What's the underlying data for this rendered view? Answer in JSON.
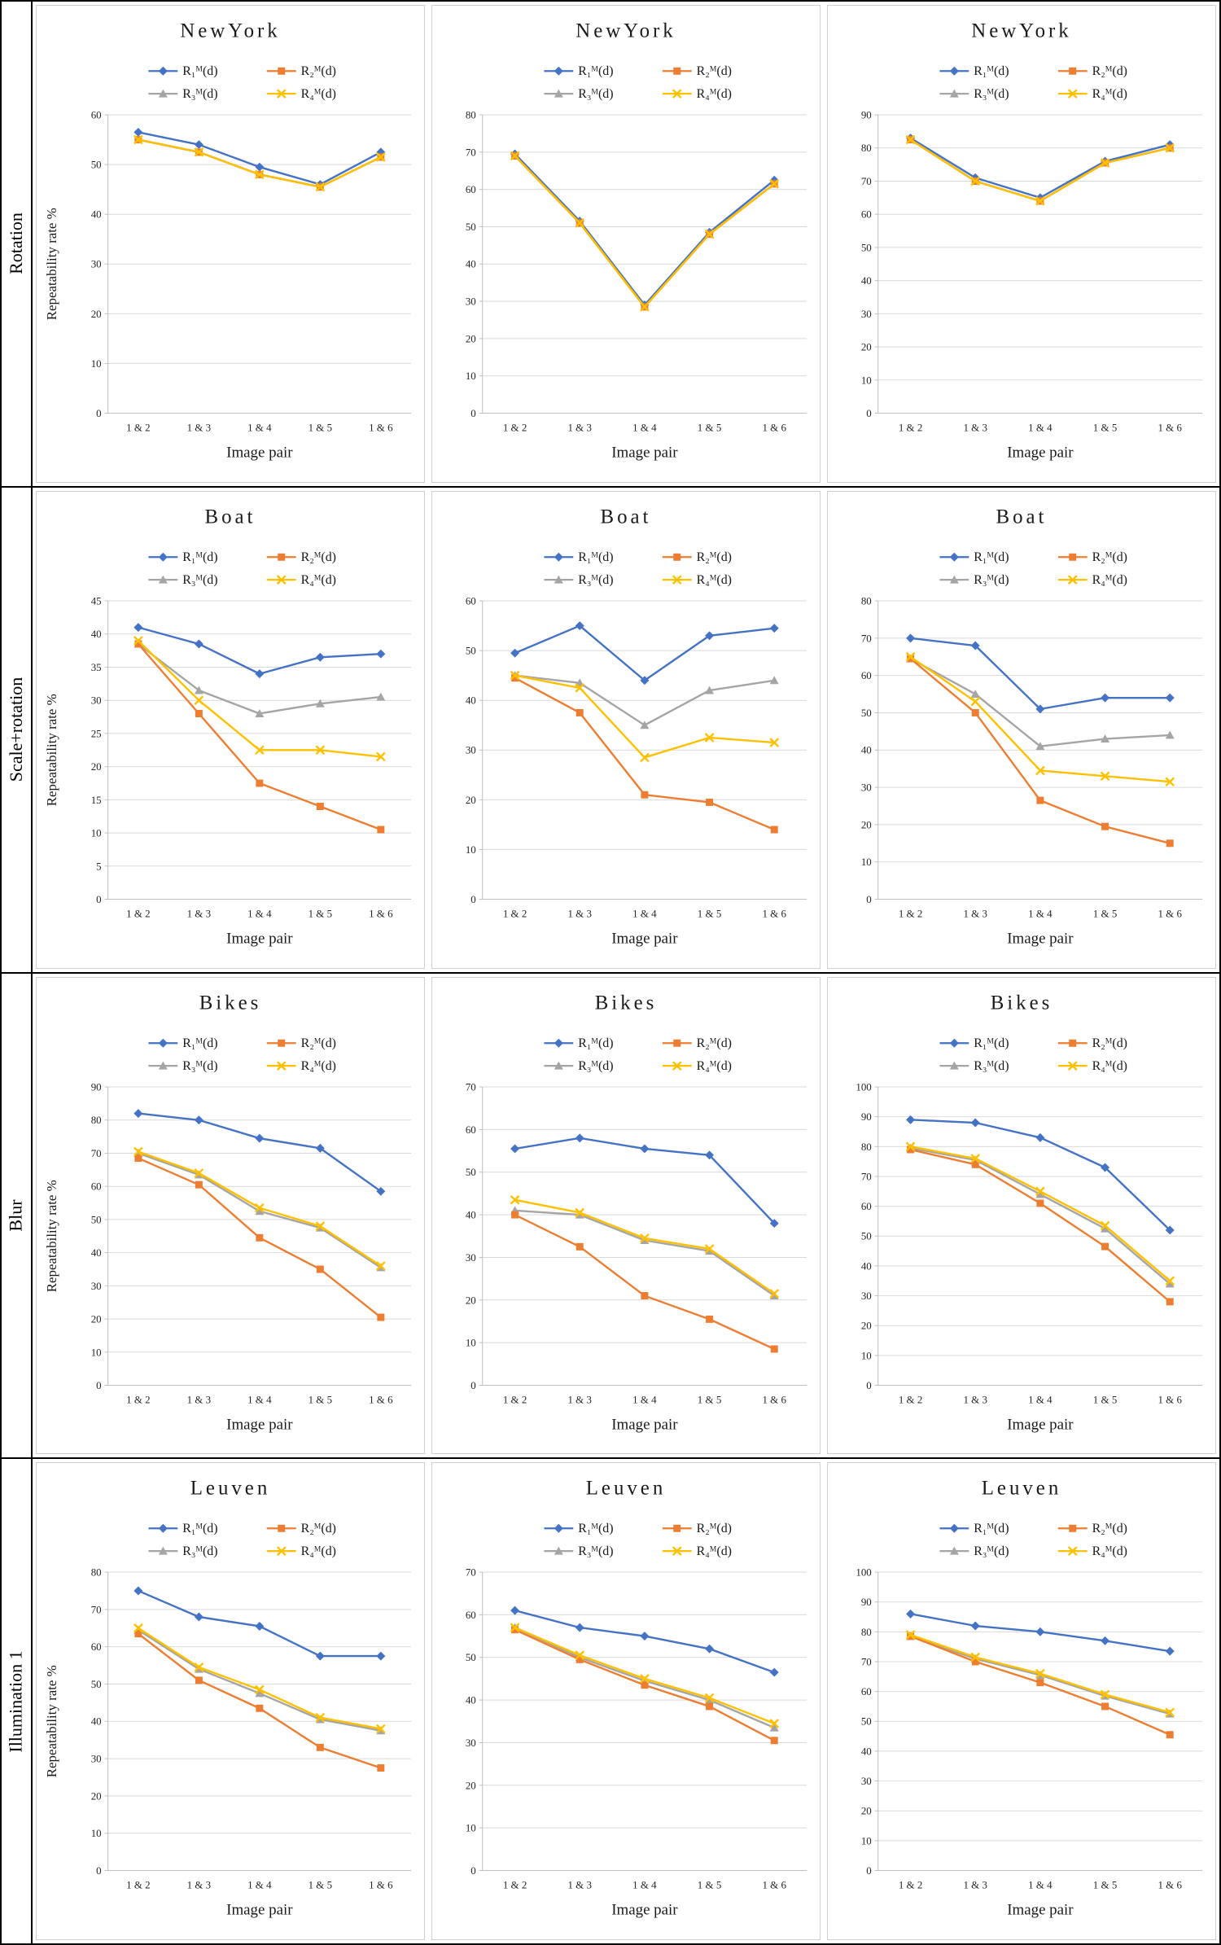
{
  "row_labels": [
    "Rotation",
    "Scale+rotation",
    "Blur",
    "Illumination 1"
  ],
  "categories": [
    "1 & 2",
    "1 & 3",
    "1 & 4",
    "1 & 5",
    "1 & 6"
  ],
  "xlabel": "Image pair",
  "ylabel": "Repeatability rate %",
  "series_labels": [
    "R₁ᴹ(d)",
    "R₂ᴹ(d)",
    "R₃ᴹ(d)",
    "R₄ᴹ(d)"
  ],
  "colors": {
    "r1": "#4472C4",
    "r2": "#ED7D31",
    "r3": "#A5A5A5",
    "r4": "#FFC000",
    "grid": "#d9d9d9",
    "axis": "#bfbfbf"
  },
  "chart_data": [
    {
      "type": "line",
      "title": "NewYork",
      "row": 0,
      "col": 0,
      "ymax": 60,
      "ystep": 10,
      "series": [
        {
          "name": "R₁ᴹ(d)",
          "color": "#4472C4",
          "marker": "diamond",
          "values": [
            56.5,
            54,
            49.5,
            46,
            52.5
          ]
        },
        {
          "name": "R₂ᴹ(d)",
          "color": "#ED7D31",
          "marker": "square",
          "values": [
            55,
            52.5,
            48,
            45.5,
            51.5
          ]
        },
        {
          "name": "R₃ᴹ(d)",
          "color": "#A5A5A5",
          "marker": "triangle",
          "values": [
            55,
            52.5,
            48,
            45.5,
            51.5
          ]
        },
        {
          "name": "R₄ᴹ(d)",
          "color": "#FFC000",
          "marker": "x",
          "values": [
            55,
            52.5,
            48,
            45.5,
            51.5
          ]
        }
      ]
    },
    {
      "type": "line",
      "title": "NewYork",
      "row": 0,
      "col": 1,
      "ymax": 80,
      "ystep": 10,
      "series": [
        {
          "name": "R₁ᴹ(d)",
          "color": "#4472C4",
          "marker": "diamond",
          "values": [
            69.5,
            51.5,
            29,
            48.5,
            62.5
          ]
        },
        {
          "name": "R₂ᴹ(d)",
          "color": "#ED7D31",
          "marker": "square",
          "values": [
            69,
            51,
            28.5,
            48,
            61.5
          ]
        },
        {
          "name": "R₃ᴹ(d)",
          "color": "#A5A5A5",
          "marker": "triangle",
          "values": [
            69,
            51,
            28.5,
            48,
            61.5
          ]
        },
        {
          "name": "R₄ᴹ(d)",
          "color": "#FFC000",
          "marker": "x",
          "values": [
            69,
            51,
            28.5,
            48,
            61.5
          ]
        }
      ]
    },
    {
      "type": "line",
      "title": "NewYork",
      "row": 0,
      "col": 2,
      "ymax": 90,
      "ystep": 10,
      "series": [
        {
          "name": "R₁ᴹ(d)",
          "color": "#4472C4",
          "marker": "diamond",
          "values": [
            83,
            71,
            65,
            76,
            81
          ]
        },
        {
          "name": "R₂ᴹ(d)",
          "color": "#ED7D31",
          "marker": "square",
          "values": [
            82.5,
            70,
            64,
            75.5,
            80
          ]
        },
        {
          "name": "R₃ᴹ(d)",
          "color": "#A5A5A5",
          "marker": "triangle",
          "values": [
            82.5,
            70,
            64,
            75.5,
            80
          ]
        },
        {
          "name": "R₄ᴹ(d)",
          "color": "#FFC000",
          "marker": "x",
          "values": [
            82.5,
            70,
            64,
            75.5,
            80
          ]
        }
      ]
    },
    {
      "type": "line",
      "title": "Boat",
      "row": 1,
      "col": 0,
      "ymax": 45,
      "ystep": 5,
      "series": [
        {
          "name": "R₁ᴹ(d)",
          "color": "#4472C4",
          "marker": "diamond",
          "values": [
            41,
            38.5,
            34,
            36.5,
            37
          ]
        },
        {
          "name": "R₂ᴹ(d)",
          "color": "#ED7D31",
          "marker": "square",
          "values": [
            38.5,
            28,
            17.5,
            14,
            10.5
          ]
        },
        {
          "name": "R₃ᴹ(d)",
          "color": "#A5A5A5",
          "marker": "triangle",
          "values": [
            38.5,
            31.5,
            28,
            29.5,
            30.5
          ]
        },
        {
          "name": "R₄ᴹ(d)",
          "color": "#FFC000",
          "marker": "x",
          "values": [
            39,
            30,
            22.5,
            22.5,
            21.5
          ]
        }
      ]
    },
    {
      "type": "line",
      "title": "Boat",
      "row": 1,
      "col": 1,
      "ymax": 60,
      "ystep": 10,
      "series": [
        {
          "name": "R₁ᴹ(d)",
          "color": "#4472C4",
          "marker": "diamond",
          "values": [
            49.5,
            55,
            44,
            53,
            54.5
          ]
        },
        {
          "name": "R₂ᴹ(d)",
          "color": "#ED7D31",
          "marker": "square",
          "values": [
            44.5,
            37.5,
            21,
            19.5,
            14
          ]
        },
        {
          "name": "R₃ᴹ(d)",
          "color": "#A5A5A5",
          "marker": "triangle",
          "values": [
            45,
            43.5,
            35,
            42,
            44
          ]
        },
        {
          "name": "R₄ᴹ(d)",
          "color": "#FFC000",
          "marker": "x",
          "values": [
            45,
            42.5,
            28.5,
            32.5,
            31.5
          ]
        }
      ]
    },
    {
      "type": "line",
      "title": "Boat",
      "row": 1,
      "col": 2,
      "ymax": 80,
      "ystep": 10,
      "series": [
        {
          "name": "R₁ᴹ(d)",
          "color": "#4472C4",
          "marker": "diamond",
          "values": [
            70,
            68,
            51,
            54,
            54
          ]
        },
        {
          "name": "R₂ᴹ(d)",
          "color": "#ED7D31",
          "marker": "square",
          "values": [
            64.5,
            50,
            26.5,
            19.5,
            15
          ]
        },
        {
          "name": "R₃ᴹ(d)",
          "color": "#A5A5A5",
          "marker": "triangle",
          "values": [
            64.5,
            55,
            41,
            43,
            44
          ]
        },
        {
          "name": "R₄ᴹ(d)",
          "color": "#FFC000",
          "marker": "x",
          "values": [
            65,
            53,
            34.5,
            33,
            31.5
          ]
        }
      ]
    },
    {
      "type": "line",
      "title": "Bikes",
      "row": 2,
      "col": 0,
      "ymax": 90,
      "ystep": 10,
      "series": [
        {
          "name": "R₁ᴹ(d)",
          "color": "#4472C4",
          "marker": "diamond",
          "values": [
            82,
            80,
            74.5,
            71.5,
            58.5
          ]
        },
        {
          "name": "R₂ᴹ(d)",
          "color": "#ED7D31",
          "marker": "square",
          "values": [
            68.5,
            60.5,
            44.5,
            35,
            20.5
          ]
        },
        {
          "name": "R₃ᴹ(d)",
          "color": "#A5A5A5",
          "marker": "triangle",
          "values": [
            70,
            63.5,
            52.5,
            47.5,
            35.5
          ]
        },
        {
          "name": "R₄ᴹ(d)",
          "color": "#FFC000",
          "marker": "x",
          "values": [
            70.5,
            64,
            53.5,
            48,
            36
          ]
        }
      ]
    },
    {
      "type": "line",
      "title": "Bikes",
      "row": 2,
      "col": 1,
      "ymax": 70,
      "ystep": 10,
      "series": [
        {
          "name": "R₁ᴹ(d)",
          "color": "#4472C4",
          "marker": "diamond",
          "values": [
            55.5,
            58,
            55.5,
            54,
            38
          ]
        },
        {
          "name": "R₂ᴹ(d)",
          "color": "#ED7D31",
          "marker": "square",
          "values": [
            40,
            32.5,
            21,
            15.5,
            8.5
          ]
        },
        {
          "name": "R₃ᴹ(d)",
          "color": "#A5A5A5",
          "marker": "triangle",
          "values": [
            41,
            40,
            34,
            31.5,
            21
          ]
        },
        {
          "name": "R₄ᴹ(d)",
          "color": "#FFC000",
          "marker": "x",
          "values": [
            43.5,
            40.5,
            34.5,
            32,
            21.5
          ]
        }
      ]
    },
    {
      "type": "line",
      "title": "Bikes",
      "row": 2,
      "col": 2,
      "ymax": 100,
      "ystep": 10,
      "series": [
        {
          "name": "R₁ᴹ(d)",
          "color": "#4472C4",
          "marker": "diamond",
          "values": [
            89,
            88,
            83,
            73,
            52
          ]
        },
        {
          "name": "R₂ᴹ(d)",
          "color": "#ED7D31",
          "marker": "square",
          "values": [
            79,
            74,
            61,
            46.5,
            28
          ]
        },
        {
          "name": "R₃ᴹ(d)",
          "color": "#A5A5A5",
          "marker": "triangle",
          "values": [
            79.5,
            75.5,
            64,
            52.5,
            34
          ]
        },
        {
          "name": "R₄ᴹ(d)",
          "color": "#FFC000",
          "marker": "x",
          "values": [
            80,
            76,
            65,
            53.5,
            35
          ]
        }
      ]
    },
    {
      "type": "line",
      "title": "Leuven",
      "row": 3,
      "col": 0,
      "ymax": 80,
      "ystep": 10,
      "series": [
        {
          "name": "R₁ᴹ(d)",
          "color": "#4472C4",
          "marker": "diamond",
          "values": [
            75,
            68,
            65.5,
            57.5,
            57.5
          ]
        },
        {
          "name": "R₂ᴹ(d)",
          "color": "#ED7D31",
          "marker": "square",
          "values": [
            63.5,
            51,
            43.5,
            33,
            27.5
          ]
        },
        {
          "name": "R₃ᴹ(d)",
          "color": "#A5A5A5",
          "marker": "triangle",
          "values": [
            64.5,
            54,
            47.5,
            40.5,
            37.5
          ]
        },
        {
          "name": "R₄ᴹ(d)",
          "color": "#FFC000",
          "marker": "x",
          "values": [
            65,
            54.5,
            48.5,
            41,
            38
          ]
        }
      ]
    },
    {
      "type": "line",
      "title": "Leuven",
      "row": 3,
      "col": 1,
      "ymax": 70,
      "ystep": 10,
      "series": [
        {
          "name": "R₁ᴹ(d)",
          "color": "#4472C4",
          "marker": "diamond",
          "values": [
            61,
            57,
            55,
            52,
            46.5
          ]
        },
        {
          "name": "R₂ᴹ(d)",
          "color": "#ED7D31",
          "marker": "square",
          "values": [
            56.5,
            49.5,
            43.5,
            38.5,
            30.5
          ]
        },
        {
          "name": "R₃ᴹ(d)",
          "color": "#A5A5A5",
          "marker": "triangle",
          "values": [
            57,
            50,
            44.5,
            40,
            33.5
          ]
        },
        {
          "name": "R₄ᴹ(d)",
          "color": "#FFC000",
          "marker": "x",
          "values": [
            57,
            50.5,
            45,
            40.5,
            34.5
          ]
        }
      ]
    },
    {
      "type": "line",
      "title": "Leuven",
      "row": 3,
      "col": 2,
      "ymax": 100,
      "ystep": 10,
      "series": [
        {
          "name": "R₁ᴹ(d)",
          "color": "#4472C4",
          "marker": "diamond",
          "values": [
            86,
            82,
            80,
            77,
            73.5
          ]
        },
        {
          "name": "R₂ᴹ(d)",
          "color": "#ED7D31",
          "marker": "square",
          "values": [
            78.5,
            70,
            63,
            55,
            45.5
          ]
        },
        {
          "name": "R₃ᴹ(d)",
          "color": "#A5A5A5",
          "marker": "triangle",
          "values": [
            78.5,
            71,
            65.5,
            58.5,
            52.5
          ]
        },
        {
          "name": "R₄ᴹ(d)",
          "color": "#FFC000",
          "marker": "x",
          "values": [
            79,
            71.5,
            66,
            59,
            53
          ]
        }
      ]
    }
  ]
}
